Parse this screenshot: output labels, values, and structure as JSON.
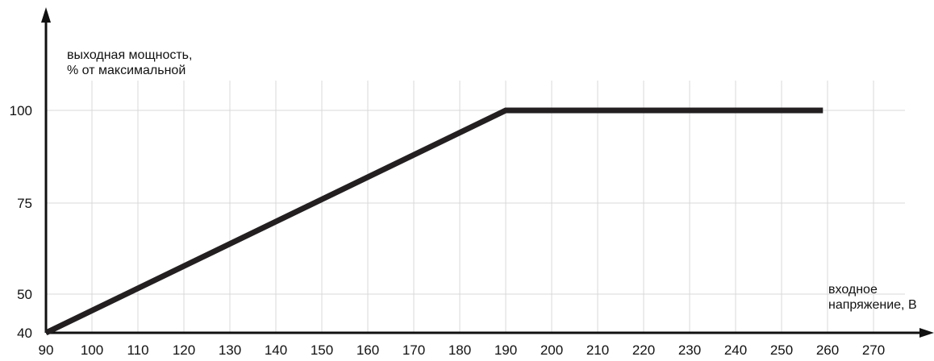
{
  "chart_data": {
    "type": "line",
    "ylabel": [
      "выходная мощность,",
      "% от максимальной"
    ],
    "xlabel": [
      "входное",
      "напряжение, В"
    ],
    "x_ticks": [
      90,
      100,
      110,
      120,
      130,
      140,
      150,
      160,
      170,
      180,
      190,
      200,
      210,
      220,
      230,
      240,
      250,
      260,
      270
    ],
    "y_ticks": [
      40,
      50,
      75,
      100
    ],
    "xlim": [
      90,
      280
    ],
    "series": [
      {
        "x": [
          90,
          190,
          259
        ],
        "y": [
          40,
          100,
          100
        ]
      }
    ],
    "grid": true,
    "colors": {
      "line": "#231f20",
      "grid": "#d9d9d9",
      "axis": "#111111"
    }
  }
}
